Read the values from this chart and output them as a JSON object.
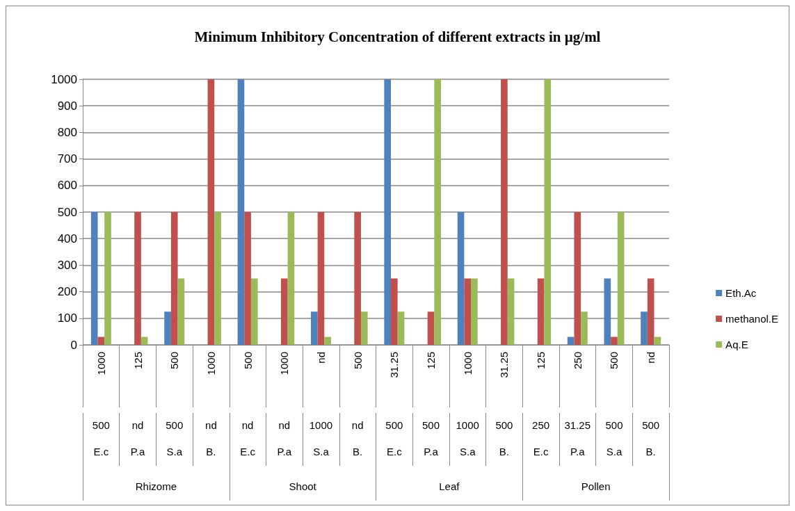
{
  "chart_data": {
    "type": "bar",
    "title": "Minimum Inhibitory Concentration of different extracts in µg/ml",
    "annotations": [
      "Rhizome",
      "Shoot",
      "Leaf",
      "Pollen"
    ],
    "categories": [
      "1000\n500\nE.c",
      "125\nnd\nP.a",
      "500\n500\nS.a",
      "1000\nnd\nB.",
      "500\nnd\nE.c",
      "1000\nnd\nP.a",
      "nd\n1000\nS.a",
      "500\nnd\nB.",
      "31.25\n500\nE.c",
      "125\n500\nP.a",
      "1000\n1000\nS.a",
      "31.25\n500\nB.",
      "125\n250\nE.c",
      "250\n31.25\nP.a",
      "500\n500\nS.a",
      "nd\n500\nB."
    ],
    "series": [
      {
        "name": "Eth.Ac",
        "color": "#4f81bd",
        "values": [
          500,
          0,
          125,
          0,
          1000,
          0,
          125,
          0,
          1000,
          0,
          500,
          0,
          0,
          30,
          250,
          125
        ]
      },
      {
        "name": "methanol.E",
        "color": "#c0504d",
        "values": [
          30,
          500,
          500,
          1000,
          500,
          250,
          500,
          500,
          250,
          125,
          250,
          1000,
          250,
          500,
          30,
          250
        ]
      },
      {
        "name": "Aq.E",
        "color": "#9bbb59",
        "values": [
          500,
          30,
          250,
          500,
          250,
          500,
          30,
          125,
          125,
          1000,
          250,
          250,
          1000,
          125,
          500,
          30
        ]
      }
    ],
    "ylim": [
      0,
      1000
    ],
    "yticks": [
      0,
      100,
      200,
      300,
      400,
      500,
      600,
      700,
      800,
      900,
      {
        "value": 1000,
        "label": "1000"
      }
    ],
    "grid": "y",
    "legend": "right"
  }
}
